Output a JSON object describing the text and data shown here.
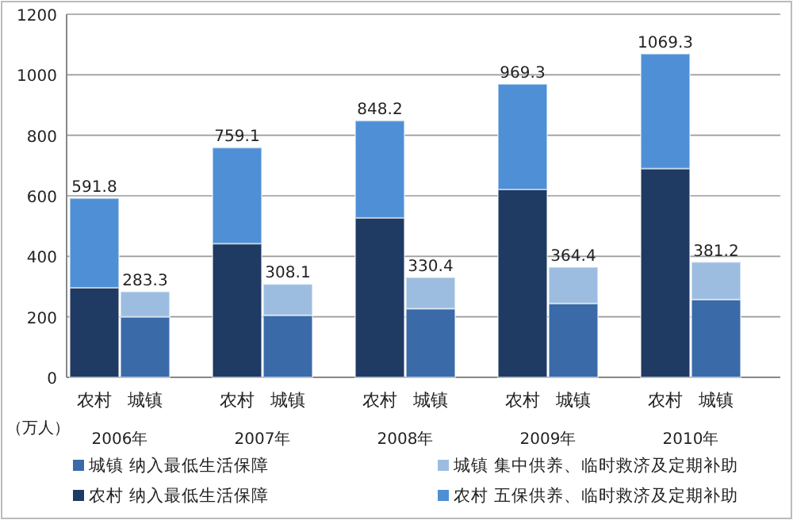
{
  "chart_data": {
    "type": "bar",
    "stacked": true,
    "ylabel": "（万人）",
    "categories": [
      "农村",
      "城镇",
      "农村",
      "城镇",
      "农村",
      "城镇",
      "农村",
      "城镇",
      "农村",
      "城镇"
    ],
    "annotations": [
      "2006年",
      "2007年",
      "2008年",
      "2009年",
      "2010年"
    ],
    "series": [
      {
        "name": "城镇 纳入最低生活保障",
        "color": "#3a6aa8",
        "values": [
          null,
          200,
          null,
          205,
          null,
          227,
          null,
          244,
          null,
          257
        ]
      },
      {
        "name": "城镇 集中供养、临时救济及定期补助",
        "color": "#9dbde0",
        "values": [
          null,
          83.3,
          null,
          103.1,
          null,
          103.4,
          null,
          120.4,
          null,
          124.2
        ]
      },
      {
        "name": "农村 纳入最低生活保障",
        "color": "#1f3a63",
        "values": [
          296,
          null,
          442,
          null,
          527,
          null,
          621,
          null,
          690,
          null
        ]
      },
      {
        "name": "农村 五保供养、临时救济及定期补助",
        "color": "#4f8fd6",
        "values": [
          295.8,
          null,
          317.1,
          null,
          321.2,
          null,
          348.3,
          null,
          379.3,
          null
        ]
      }
    ],
    "totals": [
      "591.8",
      "283.3",
      "759.1",
      "308.1",
      "848.2",
      "330.4",
      "969.3",
      "364.4",
      "1069.3",
      "381.2"
    ],
    "ylim": [
      0,
      1200
    ],
    "yticks": [
      0,
      200,
      400,
      600,
      800,
      1000,
      1200
    ],
    "grid": "y",
    "legend": "bottom"
  }
}
